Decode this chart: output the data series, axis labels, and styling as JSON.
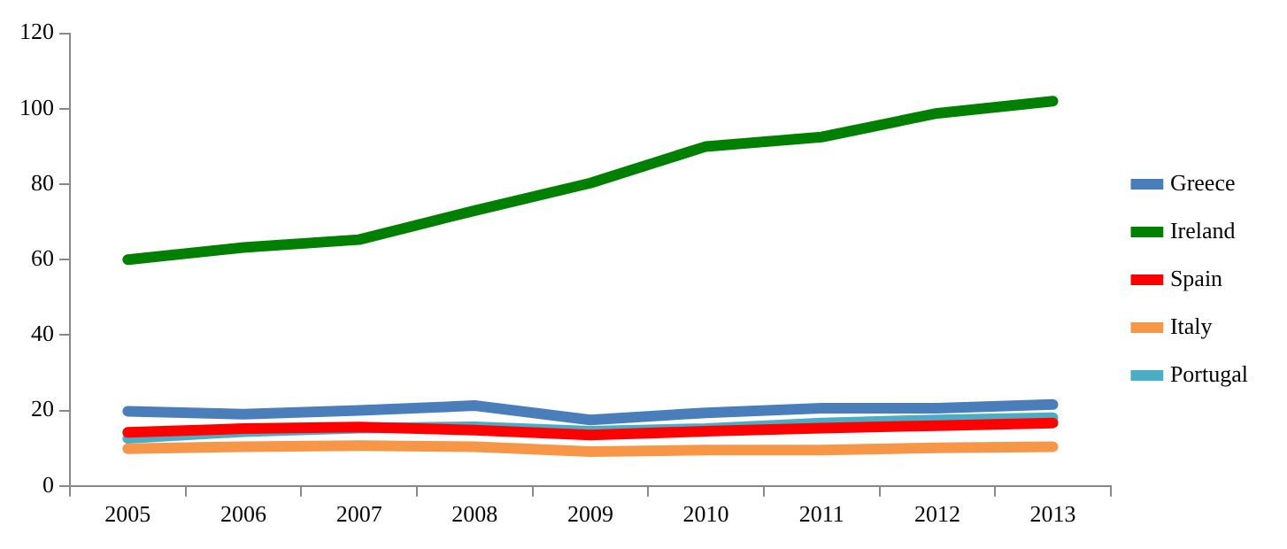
{
  "chart_data": {
    "type": "line",
    "categories": [
      "2005",
      "2006",
      "2007",
      "2008",
      "2009",
      "2010",
      "2011",
      "2012",
      "2013"
    ],
    "ylim": [
      0,
      120
    ],
    "yticks": [
      0,
      20,
      40,
      60,
      80,
      100,
      120
    ],
    "grid": false,
    "legend": "right",
    "marker": "none",
    "line_style": "solid",
    "series": [
      {
        "name": "Greece",
        "color": "#4a7ebb",
        "values": [
          19.8,
          19,
          20,
          21.3,
          17.5,
          19.4,
          20.6,
          20.6,
          21.6
        ]
      },
      {
        "name": "Ireland",
        "color": "#008000",
        "values": [
          60,
          63.2,
          65.3,
          73,
          80.3,
          90,
          92.5,
          98.8,
          102
        ]
      },
      {
        "name": "Spain",
        "color": "#ff0000",
        "values": [
          14.2,
          15.2,
          15.6,
          14.8,
          13.5,
          14.5,
          15.3,
          16,
          16.7
        ]
      },
      {
        "name": "Italy",
        "color": "#f79646",
        "values": [
          9.9,
          10.4,
          10.7,
          10.4,
          9.1,
          9.5,
          9.5,
          10.1,
          10.4
        ]
      },
      {
        "name": "Portugal",
        "color": "#4bacc6",
        "values": [
          12.6,
          14.4,
          15.3,
          15.7,
          14.5,
          15.2,
          16.7,
          17.5,
          18.1
        ]
      }
    ]
  }
}
